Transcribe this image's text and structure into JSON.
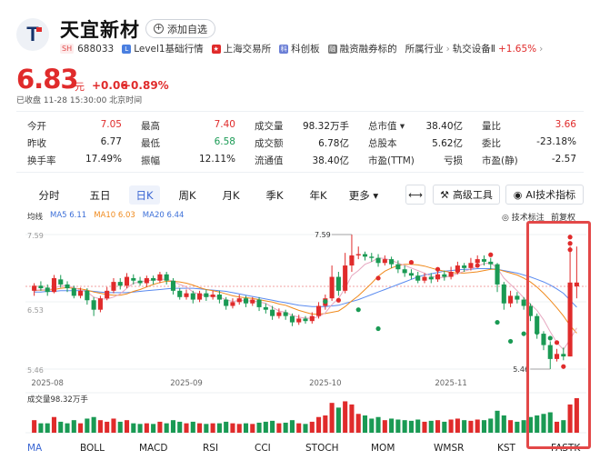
{
  "header": {
    "logo_letter": "T",
    "title": "天宜新材",
    "add_watch_label": "添加自选",
    "exchange_badge": "SH",
    "code": "688033",
    "tags": [
      "Level1基础行情",
      "上海交易所",
      "科创板",
      "融资融券标的"
    ],
    "industry_label": "所属行业",
    "industry_name": "轨交设备Ⅱ",
    "industry_change": "+1.65%"
  },
  "quote": {
    "price": "6.83",
    "unit": "元",
    "change": "+0.06",
    "change_pct": "+0.89%",
    "status": "已收盘  11-28 15:30:00  北京时间"
  },
  "stats": [
    {
      "label": "今开",
      "value": "7.05",
      "color": "red"
    },
    {
      "label": "最高",
      "value": "7.40",
      "color": "red"
    },
    {
      "label": "成交量",
      "value": "98.32万手",
      "color": ""
    },
    {
      "label": "总市值",
      "value": "38.40亿",
      "color": "",
      "arrow": true
    },
    {
      "label": "量比",
      "value": "3.66",
      "color": "red"
    },
    {
      "label": "昨收",
      "value": "6.77",
      "color": ""
    },
    {
      "label": "最低",
      "value": "6.58",
      "color": "green"
    },
    {
      "label": "成交额",
      "value": "6.78亿",
      "color": ""
    },
    {
      "label": "总股本",
      "value": "5.62亿",
      "color": ""
    },
    {
      "label": "委比",
      "value": "-23.18%",
      "color": ""
    },
    {
      "label": "换手率",
      "value": "17.49%",
      "color": ""
    },
    {
      "label": "振幅",
      "value": "12.11%",
      "color": ""
    },
    {
      "label": "流通值",
      "value": "38.40亿",
      "color": ""
    },
    {
      "label": "市盈(TTM)",
      "value": "亏损",
      "color": ""
    },
    {
      "label": "市盈(静)",
      "value": "-2.57",
      "color": ""
    }
  ],
  "tabs": [
    "分时",
    "五日",
    "日K",
    "周K",
    "月K",
    "季K",
    "年K",
    "更多"
  ],
  "active_tab": "日K",
  "tools": {
    "compare": "⟷",
    "advanced": "高级工具",
    "ai": "AI技术指标"
  },
  "legend": {
    "label": "均线",
    "ma5": "MA5 6.11",
    "ma10": "MA10 6.03",
    "ma20": "MA20 6.44"
  },
  "tech_label": "技术标注",
  "restore_label": "前复权",
  "colors": {
    "up": "#e02b2b",
    "down": "#1a9a54",
    "accent": "#3a66d3",
    "ma5": "#3c6fd8",
    "ma10": "#f08a1d",
    "ma20": "#5a8bf0"
  },
  "chart_data": {
    "type": "candlestick",
    "y_ticks": [
      "7.59",
      "6.53",
      "5.46"
    ],
    "x_ticks": [
      "2025-08",
      "2025-09",
      "2025-10",
      "2025-11"
    ],
    "high_label": "7.59",
    "low_label": "5.46",
    "volume_label": "成交量98.32万手",
    "ylim": [
      5.46,
      7.59
    ],
    "candles": [
      [
        6.7,
        6.78,
        6.62,
        6.82
      ],
      [
        6.78,
        6.74,
        6.7,
        6.85
      ],
      [
        6.75,
        6.68,
        6.62,
        6.8
      ],
      [
        6.68,
        6.9,
        6.66,
        6.95
      ],
      [
        6.88,
        6.8,
        6.75,
        6.95
      ],
      [
        6.8,
        6.74,
        6.68,
        6.85
      ],
      [
        6.74,
        6.62,
        6.58,
        6.78
      ],
      [
        6.62,
        6.7,
        6.58,
        6.75
      ],
      [
        6.7,
        6.55,
        6.48,
        6.74
      ],
      [
        6.55,
        6.4,
        6.3,
        6.6
      ],
      [
        6.4,
        6.58,
        6.36,
        6.62
      ],
      [
        6.58,
        6.7,
        6.55,
        6.76
      ],
      [
        6.7,
        6.84,
        6.66,
        6.9
      ],
      [
        6.84,
        6.78,
        6.72,
        6.9
      ],
      [
        6.78,
        6.92,
        6.74,
        6.98
      ],
      [
        6.9,
        6.86,
        6.8,
        6.96
      ],
      [
        6.86,
        6.82,
        6.78,
        6.92
      ],
      [
        6.82,
        6.9,
        6.76,
        6.94
      ],
      [
        6.9,
        6.86,
        6.8,
        6.94
      ],
      [
        6.86,
        6.96,
        6.82,
        7.0
      ],
      [
        6.96,
        6.86,
        6.8,
        7.0
      ],
      [
        6.86,
        6.7,
        6.64,
        6.9
      ],
      [
        6.7,
        6.6,
        6.56,
        6.74
      ],
      [
        6.6,
        6.66,
        6.56,
        6.72
      ],
      [
        6.66,
        6.56,
        6.5,
        6.7
      ],
      [
        6.56,
        6.66,
        6.52,
        6.7
      ],
      [
        6.66,
        6.6,
        6.54,
        6.72
      ],
      [
        6.6,
        6.64,
        6.56,
        6.7
      ],
      [
        6.64,
        6.56,
        6.5,
        6.7
      ],
      [
        6.56,
        6.46,
        6.4,
        6.6
      ],
      [
        6.46,
        6.52,
        6.42,
        6.58
      ],
      [
        6.52,
        6.58,
        6.48,
        6.64
      ],
      [
        6.58,
        6.5,
        6.44,
        6.62
      ],
      [
        6.5,
        6.56,
        6.46,
        6.6
      ],
      [
        6.56,
        6.44,
        6.38,
        6.6
      ],
      [
        6.44,
        6.4,
        6.34,
        6.5
      ],
      [
        6.4,
        6.3,
        6.24,
        6.46
      ],
      [
        6.3,
        6.36,
        6.26,
        6.42
      ],
      [
        6.36,
        6.3,
        6.24,
        6.4
      ],
      [
        6.3,
        6.2,
        6.14,
        6.34
      ],
      [
        6.2,
        6.26,
        6.16,
        6.32
      ],
      [
        6.26,
        6.22,
        6.18,
        6.3
      ],
      [
        6.22,
        6.3,
        6.18,
        6.36
      ],
      [
        6.3,
        6.46,
        6.26,
        6.52
      ],
      [
        6.46,
        6.58,
        6.4,
        6.64
      ],
      [
        6.58,
        6.92,
        6.54,
        7.1
      ],
      [
        6.92,
        6.7,
        6.62,
        7.0
      ],
      [
        6.7,
        7.1,
        6.66,
        7.3
      ],
      [
        7.1,
        7.26,
        7.0,
        7.59
      ],
      [
        7.26,
        7.28,
        7.2,
        7.4
      ],
      [
        7.28,
        7.24,
        7.18,
        7.32
      ],
      [
        7.24,
        7.22,
        7.16,
        7.3
      ],
      [
        7.22,
        7.14,
        7.08,
        7.28
      ],
      [
        7.14,
        7.2,
        7.1,
        7.26
      ],
      [
        7.2,
        7.12,
        7.06,
        7.24
      ],
      [
        7.12,
        7.04,
        6.98,
        7.18
      ],
      [
        7.04,
        6.98,
        6.92,
        7.1
      ],
      [
        6.98,
        6.94,
        6.88,
        7.04
      ],
      [
        6.94,
        6.86,
        6.82,
        7.0
      ],
      [
        6.86,
        6.92,
        6.82,
        6.98
      ],
      [
        6.92,
        6.88,
        6.82,
        6.98
      ],
      [
        6.88,
        6.96,
        6.84,
        7.02
      ],
      [
        6.96,
        6.92,
        6.86,
        7.02
      ],
      [
        6.92,
        7.0,
        6.88,
        7.08
      ],
      [
        7.0,
        7.1,
        6.96,
        7.16
      ],
      [
        7.1,
        7.06,
        7.0,
        7.14
      ],
      [
        7.06,
        7.14,
        7.02,
        7.22
      ],
      [
        7.14,
        7.2,
        7.08,
        7.26
      ],
      [
        7.2,
        7.16,
        7.1,
        7.26
      ],
      [
        7.16,
        7.12,
        7.04,
        7.22
      ],
      [
        7.12,
        6.8,
        6.68,
        7.14
      ],
      [
        6.8,
        6.5,
        6.4,
        6.84
      ],
      [
        6.5,
        6.62,
        6.44,
        6.7
      ],
      [
        6.62,
        6.56,
        6.5,
        6.68
      ],
      [
        6.56,
        6.46,
        6.4,
        6.6
      ],
      [
        6.46,
        6.3,
        6.22,
        6.5
      ],
      [
        6.3,
        6.02,
        5.94,
        6.34
      ],
      [
        6.02,
        5.84,
        5.76,
        6.06
      ],
      [
        5.84,
        5.62,
        5.46,
        5.9
      ],
      [
        5.62,
        5.7,
        5.58,
        5.78
      ],
      [
        5.7,
        5.66,
        5.6,
        5.8
      ],
      [
        5.66,
        6.83,
        5.66,
        7.4
      ],
      [
        6.77,
        6.83,
        6.58,
        7.4
      ]
    ],
    "volume": [
      0.4,
      0.3,
      0.3,
      0.5,
      0.35,
      0.3,
      0.4,
      0.3,
      0.45,
      0.5,
      0.4,
      0.35,
      0.45,
      0.35,
      0.4,
      0.3,
      0.28,
      0.3,
      0.28,
      0.35,
      0.3,
      0.4,
      0.35,
      0.3,
      0.35,
      0.3,
      0.28,
      0.3,
      0.3,
      0.35,
      0.3,
      0.28,
      0.3,
      0.28,
      0.32,
      0.35,
      0.38,
      0.3,
      0.32,
      0.4,
      0.3,
      0.28,
      0.35,
      0.5,
      0.55,
      0.95,
      0.8,
      1.0,
      0.9,
      0.6,
      0.55,
      0.45,
      0.5,
      0.4,
      0.45,
      0.42,
      0.4,
      0.38,
      0.42,
      0.35,
      0.38,
      0.4,
      0.35,
      0.42,
      0.45,
      0.4,
      0.38,
      0.42,
      0.4,
      0.45,
      0.7,
      0.55,
      0.4,
      0.35,
      0.4,
      0.5,
      0.55,
      0.6,
      0.65,
      0.35,
      0.4,
      0.9,
      1.1
    ],
    "ma5": [
      6.7,
      6.72,
      6.71,
      6.74,
      6.78,
      6.78,
      6.75,
      6.71,
      6.68,
      6.6,
      6.57,
      6.57,
      6.6,
      6.65,
      6.74,
      6.82,
      6.84,
      6.86,
      6.87,
      6.88,
      6.88,
      6.85,
      6.8,
      6.76,
      6.68,
      6.64,
      6.62,
      6.62,
      6.6,
      6.56,
      6.53,
      6.55,
      6.54,
      6.54,
      6.52,
      6.5,
      6.44,
      6.38,
      6.36,
      6.31,
      6.28,
      6.27,
      6.26,
      6.29,
      6.35,
      6.48,
      6.58,
      6.74,
      6.94,
      7.02,
      7.12,
      7.16,
      7.22,
      7.21,
      7.18,
      7.14,
      7.1,
      7.06,
      7.02,
      6.98,
      6.93,
      6.91,
      6.91,
      6.94,
      6.97,
      7.01,
      7.04,
      7.09,
      7.13,
      7.14,
      7.06,
      6.9,
      6.8,
      6.7,
      6.59,
      6.49,
      6.39,
      6.24,
      6.05,
      5.88,
      5.77,
      5.93,
      6.11
    ],
    "ma10": [
      6.7,
      6.71,
      6.71,
      6.72,
      6.74,
      6.75,
      6.74,
      6.73,
      6.71,
      6.68,
      6.66,
      6.64,
      6.63,
      6.63,
      6.65,
      6.69,
      6.72,
      6.76,
      6.8,
      6.83,
      6.85,
      6.85,
      6.84,
      6.82,
      6.79,
      6.75,
      6.72,
      6.7,
      6.68,
      6.65,
      6.62,
      6.6,
      6.59,
      6.58,
      6.56,
      6.54,
      6.52,
      6.49,
      6.47,
      6.43,
      6.39,
      6.36,
      6.33,
      6.33,
      6.34,
      6.36,
      6.38,
      6.45,
      6.54,
      6.62,
      6.72,
      6.82,
      6.93,
      7.01,
      7.06,
      7.1,
      7.12,
      7.12,
      7.11,
      7.09,
      7.06,
      7.03,
      7.01,
      6.99,
      6.98,
      6.98,
      6.99,
      7.0,
      7.02,
      7.04,
      7.04,
      7.01,
      6.98,
      6.95,
      6.9,
      6.84,
      6.76,
      6.66,
      6.55,
      6.43,
      6.3,
      6.15,
      6.03
    ],
    "ma20": [
      6.68,
      6.68,
      6.69,
      6.69,
      6.7,
      6.7,
      6.7,
      6.7,
      6.7,
      6.69,
      6.68,
      6.67,
      6.67,
      6.67,
      6.67,
      6.68,
      6.69,
      6.7,
      6.71,
      6.72,
      6.73,
      6.74,
      6.74,
      6.74,
      6.74,
      6.73,
      6.72,
      6.71,
      6.7,
      6.69,
      6.67,
      6.65,
      6.63,
      6.61,
      6.59,
      6.57,
      6.55,
      6.53,
      6.51,
      6.49,
      6.47,
      6.46,
      6.45,
      6.45,
      6.45,
      6.46,
      6.47,
      6.5,
      6.53,
      6.56,
      6.6,
      6.64,
      6.68,
      6.72,
      6.76,
      6.8,
      6.84,
      6.88,
      6.92,
      6.95,
      6.97,
      6.99,
      7.01,
      7.02,
      7.03,
      7.04,
      7.04,
      7.05,
      7.05,
      7.05,
      7.04,
      7.02,
      7.0,
      6.98,
      6.95,
      6.92,
      6.88,
      6.84,
      6.79,
      6.73,
      6.66,
      6.55,
      6.44
    ]
  },
  "indicators": [
    "MA",
    "BOLL",
    "MACD",
    "RSI",
    "CCI",
    "STOCH",
    "MOM",
    "WMSR",
    "KST",
    "FASTK"
  ],
  "active_indicator": "MA"
}
